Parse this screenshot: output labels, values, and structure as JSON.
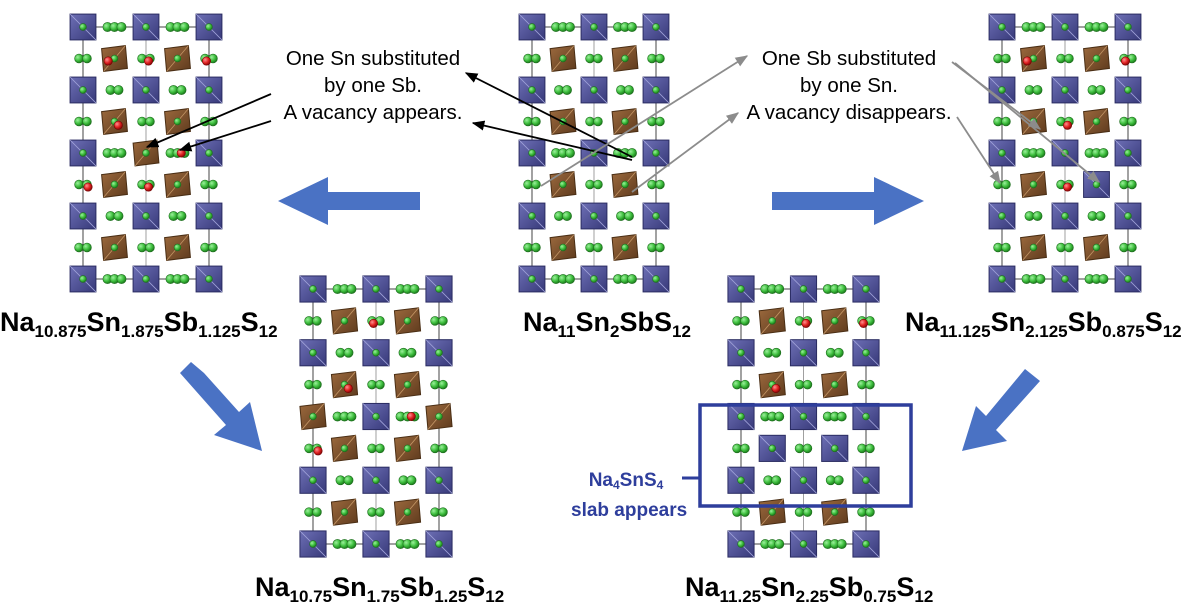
{
  "structures": [
    {
      "id": "center-top",
      "formula": [
        [
          "Na",
          "11"
        ],
        [
          "Sn",
          "2"
        ],
        [
          "Sb",
          ""
        ],
        [
          "S",
          "12"
        ]
      ]
    },
    {
      "id": "left-top",
      "formula": [
        [
          "Na",
          "10.875"
        ],
        [
          "Sn",
          "1.875"
        ],
        [
          "Sb",
          "1.125"
        ],
        [
          "S",
          "12"
        ]
      ]
    },
    {
      "id": "right-top",
      "formula": [
        [
          "Na",
          "11.125"
        ],
        [
          "Sn",
          "2.125"
        ],
        [
          "Sb",
          "0.875"
        ],
        [
          "S",
          "12"
        ]
      ]
    },
    {
      "id": "left-bottom",
      "formula": [
        [
          "Na",
          "10.75"
        ],
        [
          "Sn",
          "1.75"
        ],
        [
          "Sb",
          "1.25"
        ],
        [
          "S",
          "12"
        ]
      ]
    },
    {
      "id": "right-bottom",
      "formula": [
        [
          "Na",
          "11.25"
        ],
        [
          "Sn",
          "2.25"
        ],
        [
          "Sb",
          "0.75"
        ],
        [
          "S",
          "12"
        ]
      ]
    }
  ],
  "annotations": {
    "left_note": [
      "One Sn substituted",
      "by one Sb.",
      "A vacancy appears."
    ],
    "right_note": [
      "One Sb substituted",
      "by one Sn.",
      "A vacancy disappears."
    ],
    "slab_label": {
      "line1_parts": [
        [
          "Na",
          "4"
        ],
        [
          "SnS",
          "4"
        ]
      ],
      "line2": "slab appears"
    }
  },
  "colors": {
    "arrow": "#4A72C4",
    "sn_polyhedron": "#4A4C8F",
    "sb_polyhedron": "#7A4E2B",
    "na_atom": "#3DBE3D",
    "vacancy_marker": "#E02020",
    "slab_box": "#2E3E9C",
    "annotation_arrow_black": "#000000",
    "annotation_arrow_gray": "#8C8C8C"
  }
}
